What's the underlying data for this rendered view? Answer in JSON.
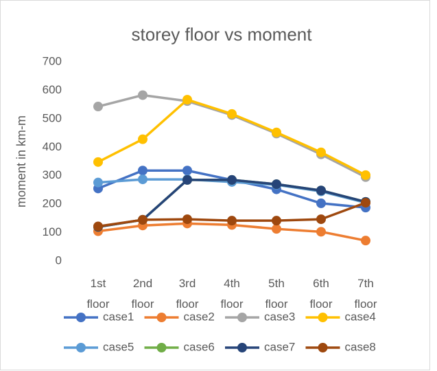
{
  "chart_data": {
    "type": "line",
    "title": "storey floor vs moment",
    "y_label": "moment in km-m",
    "categories": [
      "1st floor",
      "2nd floor",
      "3rd floor",
      "4th floor",
      "5th floor",
      "6th floor",
      "7th floor"
    ],
    "series": [
      {
        "name": "case1",
        "color": "#4472c4",
        "values": [
          255,
          318,
          318,
          285,
          252,
          203,
          188
        ]
      },
      {
        "name": "case2",
        "color": "#ed7d31",
        "values": [
          105,
          125,
          132,
          127,
          113,
          103,
          72
        ]
      },
      {
        "name": "case3",
        "color": "#a5a5a5",
        "values": [
          543,
          583,
          562,
          513,
          448,
          375,
          295
        ]
      },
      {
        "name": "case4",
        "color": "#ffc000",
        "values": [
          348,
          428,
          567,
          517,
          452,
          382,
          302
        ]
      },
      {
        "name": "case5",
        "color": "#5b9bd5",
        "values": [
          276,
          287,
          287,
          278,
          268,
          245,
          205
        ]
      },
      {
        "name": "case6",
        "color": "#70ad47",
        "values": [
          120,
          145,
          285,
          285,
          270,
          248,
          208
        ]
      },
      {
        "name": "case7",
        "color": "#264478",
        "values": [
          120,
          145,
          285,
          285,
          270,
          248,
          208
        ]
      },
      {
        "name": "case8",
        "color": "#9e480e",
        "values": [
          122,
          145,
          147,
          142,
          142,
          147,
          205
        ]
      }
    ],
    "ylim": [
      0,
      700
    ],
    "yticks": [
      0,
      100,
      200,
      300,
      400,
      500,
      600,
      700
    ],
    "grid": false
  }
}
